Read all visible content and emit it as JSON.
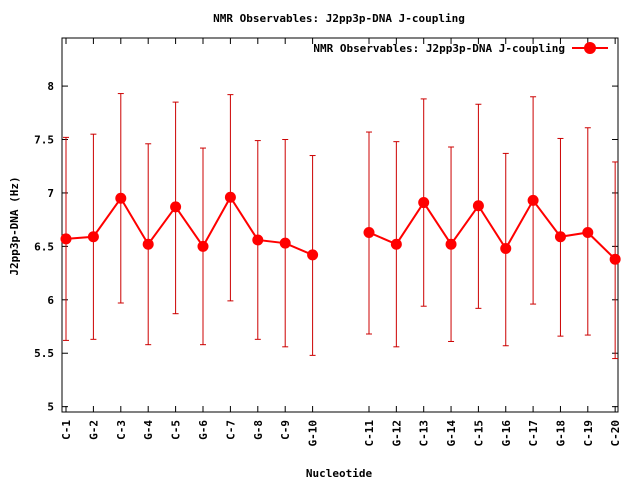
{
  "chart_data": {
    "type": "line",
    "title": "NMR Observables: J2pp3p-DNA J-coupling",
    "xlabel": "Nucleotide",
    "ylabel": "J2pp3p-DNA (Hz)",
    "ylim": [
      4.95,
      8.45
    ],
    "yticks": [
      "5",
      "5.5",
      "6",
      "6.5",
      "7",
      "7.5",
      "8"
    ],
    "legend_position": "top-right",
    "grid": false,
    "series_color": "#ff0000",
    "errorbar_color": "#cc0000",
    "series": [
      {
        "name": "NMR Observables: J2pp3p-DNA J-coupling",
        "segments": [
          [
            {
              "label": "C-1",
              "y": 6.57,
              "low": 5.62,
              "high": 7.52
            },
            {
              "label": "G-2",
              "y": 6.59,
              "low": 5.63,
              "high": 7.55
            },
            {
              "label": "C-3",
              "y": 6.95,
              "low": 5.97,
              "high": 7.93
            },
            {
              "label": "G-4",
              "y": 6.52,
              "low": 5.58,
              "high": 7.46
            },
            {
              "label": "C-5",
              "y": 6.87,
              "low": 5.87,
              "high": 7.85
            },
            {
              "label": "G-6",
              "y": 6.5,
              "low": 5.58,
              "high": 7.42
            },
            {
              "label": "C-7",
              "y": 6.96,
              "low": 5.99,
              "high": 7.92
            },
            {
              "label": "G-8",
              "y": 6.56,
              "low": 5.63,
              "high": 7.49
            },
            {
              "label": "C-9",
              "y": 6.53,
              "low": 5.56,
              "high": 7.5
            },
            {
              "label": "G-10",
              "y": 6.42,
              "low": 5.48,
              "high": 7.35
            }
          ],
          [
            {
              "label": "C-11",
              "y": 6.63,
              "low": 5.68,
              "high": 7.57
            },
            {
              "label": "G-12",
              "y": 6.52,
              "low": 5.56,
              "high": 7.48
            },
            {
              "label": "C-13",
              "y": 6.91,
              "low": 5.94,
              "high": 7.88
            },
            {
              "label": "G-14",
              "y": 6.52,
              "low": 5.61,
              "high": 7.43
            },
            {
              "label": "C-15",
              "y": 6.88,
              "low": 5.92,
              "high": 7.83
            },
            {
              "label": "G-16",
              "y": 6.48,
              "low": 5.57,
              "high": 7.37
            },
            {
              "label": "C-17",
              "y": 6.93,
              "low": 5.96,
              "high": 7.9
            },
            {
              "label": "G-18",
              "y": 6.59,
              "low": 5.66,
              "high": 7.51
            },
            {
              "label": "C-19",
              "y": 6.63,
              "low": 5.67,
              "high": 7.61
            },
            {
              "label": "C-20",
              "y": 6.38,
              "low": 5.45,
              "high": 7.29
            }
          ]
        ]
      }
    ]
  }
}
